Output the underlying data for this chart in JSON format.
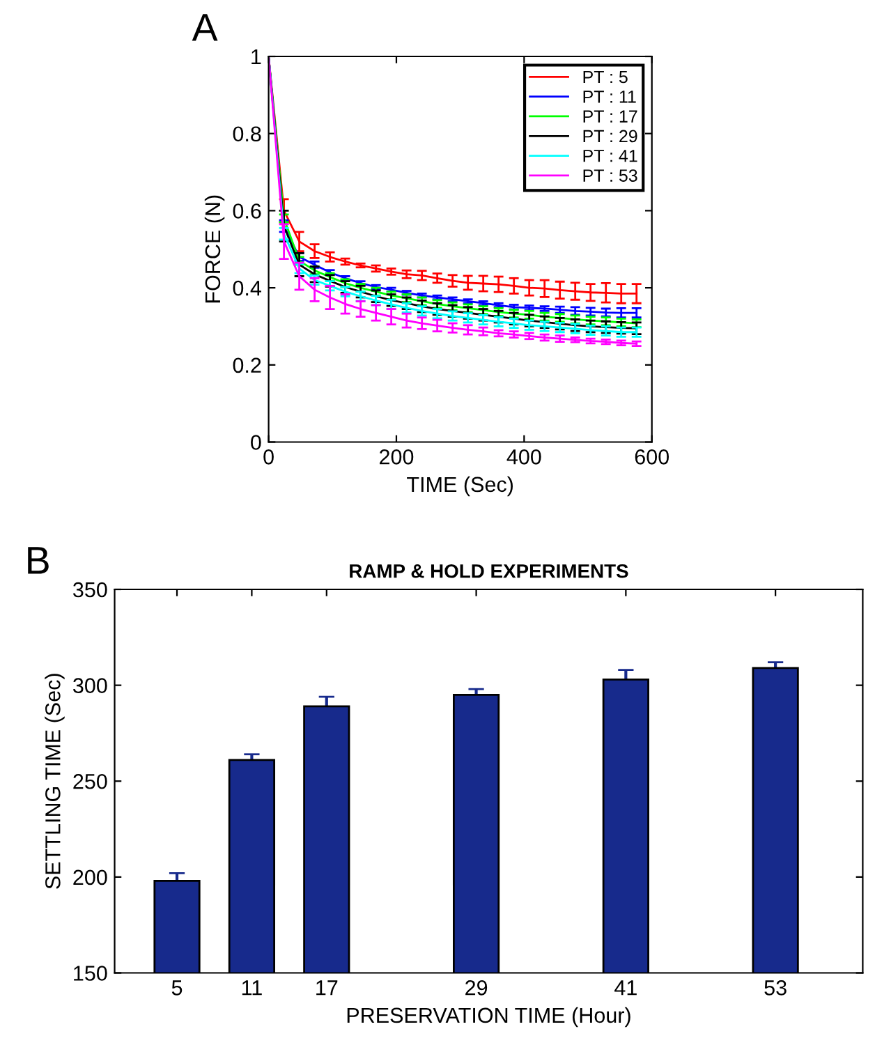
{
  "chart_data": [
    {
      "type": "line",
      "annotations": [
        "A"
      ],
      "xlabel": "TIME (Sec)",
      "ylabel": "FORCE (N)",
      "x": [
        0,
        24,
        48,
        72,
        96,
        120,
        144,
        168,
        192,
        216,
        240,
        264,
        288,
        312,
        336,
        360,
        384,
        408,
        432,
        456,
        480,
        504,
        528,
        552,
        576
      ],
      "xlim": [
        0,
        600
      ],
      "xticks": [
        0,
        200,
        400,
        600
      ],
      "ylim": [
        0,
        1
      ],
      "yticks": [
        {
          "value": 0,
          "label": "0"
        },
        0.2,
        0.4,
        0.6,
        0.8,
        {
          "value": 1,
          "label": "1"
        }
      ],
      "legend": "top right",
      "grid": false,
      "series": [
        {
          "name": "PT : 5",
          "color": "#ff0000",
          "values": [
            1.0,
            0.6,
            0.52,
            0.495,
            0.48,
            0.468,
            0.458,
            0.45,
            0.442,
            0.435,
            0.432,
            0.425,
            0.418,
            0.413,
            0.411,
            0.409,
            0.405,
            0.4,
            0.398,
            0.394,
            0.391,
            0.388,
            0.387,
            0.385,
            0.385
          ],
          "errors": [
            null,
            0.03,
            0.025,
            0.018,
            0.012,
            0.008,
            0.005,
            0.008,
            0.008,
            0.01,
            0.012,
            0.012,
            0.015,
            0.018,
            0.02,
            0.02,
            0.02,
            0.02,
            0.022,
            0.022,
            0.022,
            0.022,
            0.025,
            0.025,
            0.025
          ]
        },
        {
          "name": "PT : 11",
          "color": "#0000ff",
          "values": [
            1.0,
            0.56,
            0.48,
            0.46,
            0.44,
            0.425,
            0.412,
            0.402,
            0.395,
            0.387,
            0.38,
            0.375,
            0.37,
            0.365,
            0.36,
            0.355,
            0.35,
            0.348,
            0.346,
            0.343,
            0.34,
            0.338,
            0.336,
            0.335,
            0.335
          ],
          "errors": [
            null,
            0.015,
            0.01,
            0.008,
            0.006,
            0.005,
            0.005,
            0.005,
            0.005,
            0.005,
            0.005,
            0.005,
            0.005,
            0.005,
            0.005,
            0.005,
            0.006,
            0.006,
            0.006,
            0.008,
            0.01,
            0.01,
            0.01,
            0.012,
            0.012
          ]
        },
        {
          "name": "PT : 17",
          "color": "#00ff00",
          "values": [
            1.0,
            0.58,
            0.47,
            0.445,
            0.428,
            0.412,
            0.4,
            0.39,
            0.38,
            0.373,
            0.365,
            0.358,
            0.352,
            0.347,
            0.342,
            0.337,
            0.333,
            0.33,
            0.325,
            0.322,
            0.318,
            0.315,
            0.313,
            0.31,
            0.308
          ],
          "errors": [
            null,
            0.01,
            0.01,
            0.01,
            0.01,
            0.01,
            0.01,
            0.01,
            0.01,
            0.01,
            0.01,
            0.01,
            0.01,
            0.01,
            0.01,
            0.01,
            0.01,
            0.01,
            0.01,
            0.01,
            0.01,
            0.01,
            0.01,
            0.01,
            0.01
          ]
        },
        {
          "name": "PT : 29",
          "color": "#000000",
          "values": [
            1.0,
            0.56,
            0.46,
            0.435,
            0.418,
            0.402,
            0.39,
            0.378,
            0.368,
            0.36,
            0.352,
            0.345,
            0.34,
            0.335,
            0.33,
            0.325,
            0.32,
            0.315,
            0.311,
            0.307,
            0.303,
            0.3,
            0.298,
            0.296,
            0.295
          ],
          "errors": [
            null,
            0.04,
            0.03,
            0.02,
            0.015,
            0.015,
            0.015,
            0.015,
            0.015,
            0.015,
            0.015,
            0.015,
            0.015,
            0.015,
            0.015,
            0.015,
            0.015,
            0.015,
            0.015,
            0.015,
            0.015,
            0.015,
            0.015,
            0.015,
            0.015
          ]
        },
        {
          "name": "PT : 41",
          "color": "#00ffff",
          "values": [
            1.0,
            0.54,
            0.45,
            0.42,
            0.405,
            0.39,
            0.378,
            0.367,
            0.357,
            0.348,
            0.34,
            0.333,
            0.327,
            0.322,
            0.317,
            0.312,
            0.308,
            0.303,
            0.3,
            0.297,
            0.294,
            0.29,
            0.288,
            0.285,
            0.285
          ],
          "errors": [
            null,
            0.015,
            0.012,
            0.012,
            0.012,
            0.012,
            0.012,
            0.012,
            0.012,
            0.012,
            0.012,
            0.012,
            0.012,
            0.012,
            0.012,
            0.012,
            0.012,
            0.012,
            0.012,
            0.012,
            0.012,
            0.012,
            0.012,
            0.012,
            0.012
          ]
        },
        {
          "name": "PT : 53",
          "color": "#ff00ff",
          "values": [
            1.0,
            0.52,
            0.43,
            0.395,
            0.375,
            0.358,
            0.345,
            0.335,
            0.325,
            0.315,
            0.308,
            0.302,
            0.296,
            0.291,
            0.287,
            0.282,
            0.279,
            0.275,
            0.271,
            0.268,
            0.265,
            0.262,
            0.26,
            0.257,
            0.255
          ],
          "errors": [
            null,
            0.045,
            0.035,
            0.03,
            0.03,
            0.025,
            0.02,
            0.02,
            0.02,
            0.018,
            0.015,
            0.015,
            0.012,
            0.012,
            0.01,
            0.008,
            0.008,
            0.008,
            0.008,
            0.008,
            0.006,
            0.006,
            0.006,
            0.006,
            0.006
          ]
        }
      ]
    },
    {
      "type": "bar",
      "annotations": [
        "B"
      ],
      "title": "RAMP & HOLD EXPERIMENTS",
      "xlabel": "PRESERVATION TIME (Hour)",
      "ylabel": "SETTLING TIME (Sec)",
      "x": [
        5,
        11,
        17,
        29,
        41,
        53
      ],
      "values": [
        198,
        261,
        289,
        295,
        303,
        309
      ],
      "errors": [
        4,
        3,
        5,
        3,
        5,
        3
      ],
      "color": "#172a8c",
      "xlim": [
        0,
        60
      ],
      "xticks": [
        5,
        11,
        17,
        29,
        41,
        53
      ],
      "ylim": [
        150,
        350
      ],
      "yticks": [
        150,
        200,
        250,
        300,
        350
      ],
      "grid": false
    }
  ]
}
